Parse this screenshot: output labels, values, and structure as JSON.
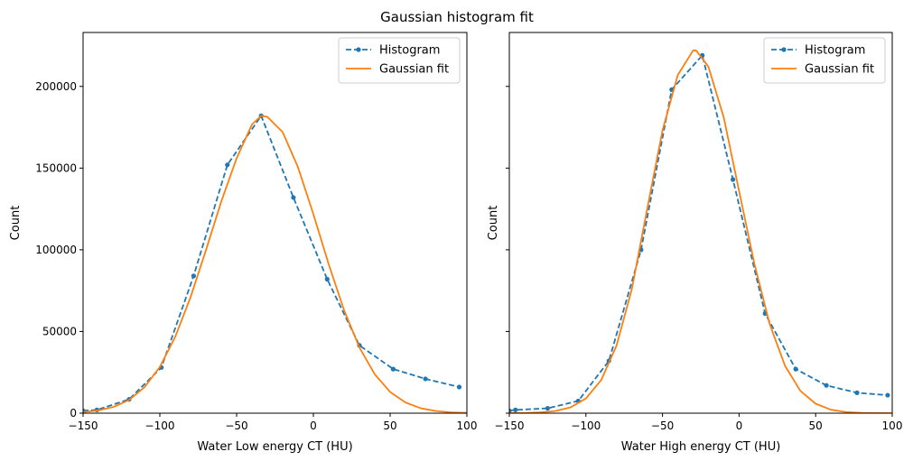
{
  "figure": {
    "title": "Gaussian histogram fit"
  },
  "chart_data": [
    {
      "type": "line",
      "xlabel": "Water Low energy CT (HU)",
      "ylabel": "Count",
      "xlim": [
        -150,
        100
      ],
      "ylim": [
        0,
        233000
      ],
      "xticks": [
        -150,
        -100,
        -50,
        0,
        50,
        100
      ],
      "yticks": [
        0,
        50000,
        100000,
        150000,
        200000
      ],
      "show_ytick_labels": true,
      "grid": false,
      "legend_position": "top-right",
      "series": [
        {
          "name": "Histogram",
          "style": "dashed-dots",
          "color": "#1f77b4",
          "x": [
            -150,
            -141,
            -120,
            -99,
            -78,
            -56,
            -34,
            -13,
            9,
            30,
            52,
            73,
            95
          ],
          "y": [
            1500,
            2000,
            8500,
            28000,
            84000,
            152000,
            182000,
            132000,
            82000,
            41500,
            27000,
            21000,
            16000
          ]
        },
        {
          "name": "Gaussian fit",
          "style": "solid",
          "color": "#ff7f0e",
          "x": [
            -150,
            -140,
            -130,
            -120,
            -110,
            -100,
            -90,
            -80,
            -70,
            -60,
            -50,
            -40,
            -34,
            -30,
            -20,
            -10,
            0,
            10,
            20,
            30,
            40,
            50,
            60,
            70,
            80,
            90,
            100
          ],
          "y": [
            700,
            1700,
            3900,
            8100,
            15900,
            28300,
            46700,
            71000,
            99700,
            129500,
            156000,
            176700,
            182000,
            181400,
            172000,
            150500,
            121800,
            91100,
            63000,
            40200,
            23800,
            13000,
            6550,
            3000,
            1300,
            500,
            200
          ]
        }
      ]
    },
    {
      "type": "line",
      "xlabel": "Water High energy CT (HU)",
      "ylabel": "Count",
      "xlim": [
        -150,
        100
      ],
      "ylim": [
        0,
        233000
      ],
      "xticks": [
        -150,
        -100,
        -50,
        0,
        50,
        100
      ],
      "yticks": [
        0,
        50000,
        100000,
        150000,
        200000
      ],
      "show_ytick_labels": false,
      "grid": false,
      "legend_position": "top-right",
      "series": [
        {
          "name": "Histogram",
          "style": "dashed-dots",
          "color": "#1f77b4",
          "x": [
            -150,
            -146,
            -125,
            -105,
            -85,
            -64,
            -44,
            -24,
            -4,
            17,
            37,
            57,
            77,
            97
          ],
          "y": [
            1500,
            2000,
            3000,
            7500,
            32000,
            100000,
            198000,
            219000,
            143000,
            61000,
            27000,
            17000,
            12500,
            11000
          ]
        },
        {
          "name": "Gaussian fit",
          "style": "solid",
          "color": "#ff7f0e",
          "x": [
            -150,
            -140,
            -130,
            -120,
            -110,
            -100,
            -90,
            -80,
            -70,
            -60,
            -50,
            -40,
            -30,
            -28,
            -20,
            -10,
            0,
            10,
            20,
            30,
            40,
            50,
            60,
            70,
            80,
            90,
            100
          ],
          "y": [
            50,
            150,
            450,
            1300,
            3600,
            9000,
            20300,
            41400,
            76000,
            125000,
            173000,
            207000,
            222000,
            222000,
            212000,
            181000,
            136000,
            91400,
            54500,
            29000,
            13700,
            5800,
            2100,
            700,
            200,
            50,
            10
          ]
        }
      ]
    }
  ]
}
